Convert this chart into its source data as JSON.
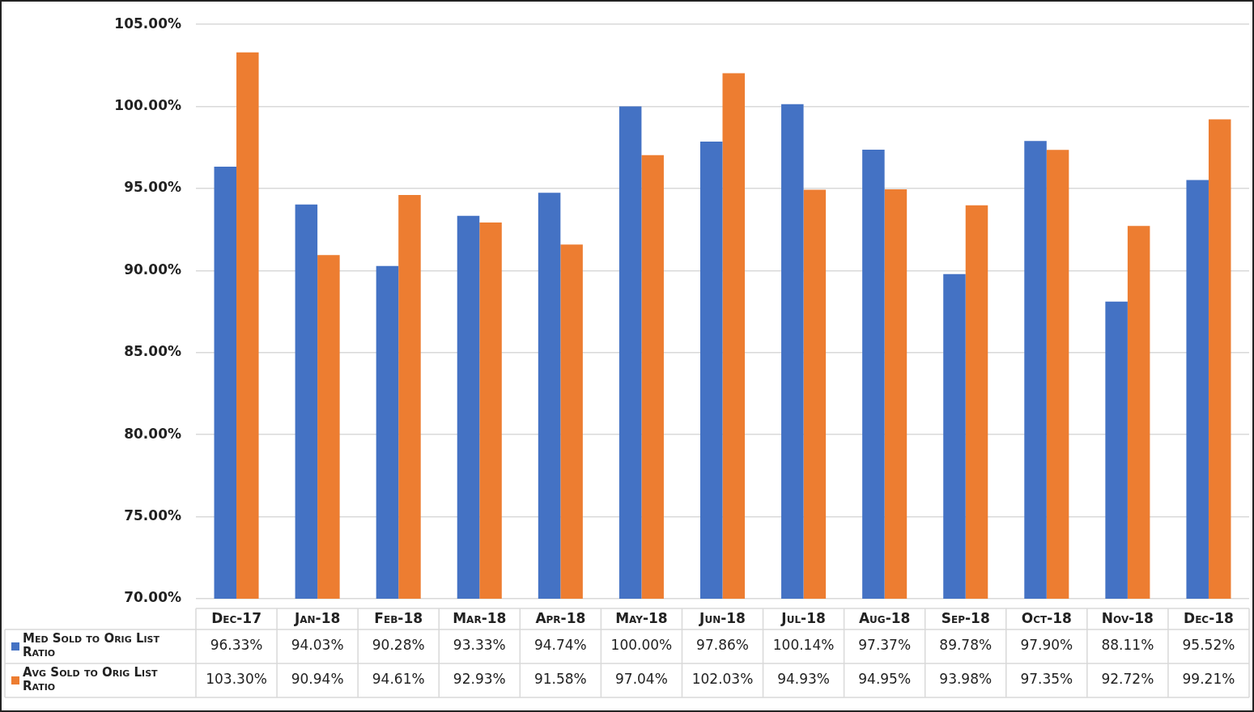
{
  "chart_data": {
    "type": "bar",
    "categories": [
      "Dec-17",
      "Jan-18",
      "Feb-18",
      "Mar-18",
      "Apr-18",
      "May-18",
      "Jun-18",
      "Jul-18",
      "Aug-18",
      "Sep-18",
      "Oct-18",
      "Nov-18",
      "Dec-18"
    ],
    "series": [
      {
        "name": "Med Sold to Orig List Ratio",
        "color": "#4472c4",
        "values": [
          96.33,
          94.03,
          90.28,
          93.33,
          94.74,
          100.0,
          97.86,
          100.14,
          97.37,
          89.78,
          97.9,
          88.11,
          95.52
        ],
        "value_labels": [
          "96.33%",
          "94.03%",
          "90.28%",
          "93.33%",
          "94.74%",
          "100.00%",
          "97.86%",
          "100.14%",
          "97.37%",
          "89.78%",
          "97.90%",
          "88.11%",
          "95.52%"
        ]
      },
      {
        "name": "Avg Sold to Orig List Ratio",
        "color": "#ed7d31",
        "values": [
          103.3,
          90.94,
          94.61,
          92.93,
          91.58,
          97.04,
          102.03,
          94.93,
          94.95,
          93.98,
          97.35,
          92.72,
          99.21
        ],
        "value_labels": [
          "103.30%",
          "90.94%",
          "94.61%",
          "92.93%",
          "91.58%",
          "97.04%",
          "102.03%",
          "94.93%",
          "94.95%",
          "93.98%",
          "97.35%",
          "92.72%",
          "99.21%"
        ]
      }
    ],
    "ylim": [
      70,
      105
    ],
    "yticks": [
      {
        "value": 70,
        "label": "70.00%"
      },
      {
        "value": 75,
        "label": "75.00%"
      },
      {
        "value": 80,
        "label": "80.00%"
      },
      {
        "value": 85,
        "label": "85.00%"
      },
      {
        "value": 90,
        "label": "90.00%"
      },
      {
        "value": 95,
        "label": "95.00%"
      },
      {
        "value": 100,
        "label": "100.00%"
      },
      {
        "value": 105,
        "label": "105.00%"
      }
    ],
    "grid": "y",
    "legend": "bottom"
  }
}
